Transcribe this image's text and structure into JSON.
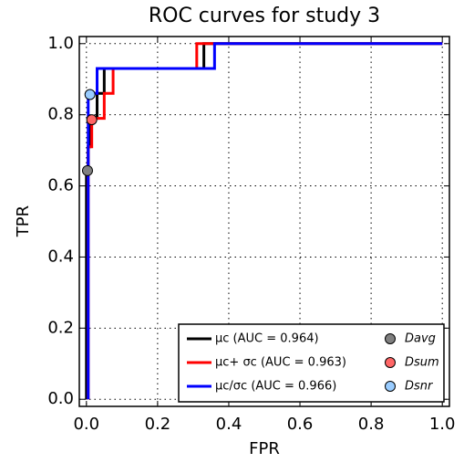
{
  "chart_data": {
    "type": "line",
    "title": "ROC curves for study 3",
    "xlabel": "FPR",
    "ylabel": "TPR",
    "xlim": [
      -0.02,
      1.02
    ],
    "ylim": [
      -0.02,
      1.02
    ],
    "xticks": [
      {
        "value": 0,
        "label": "0.0"
      },
      0.2,
      0.4,
      0.6,
      0.8,
      {
        "value": 1,
        "label": "1.0"
      }
    ],
    "yticks": [
      {
        "value": 0,
        "label": "0.0"
      },
      0.2,
      0.4,
      0.6,
      0.8,
      {
        "value": 1,
        "label": "1.0"
      }
    ],
    "grid": true,
    "legend": "lower right",
    "series": [
      {
        "name": "μc (AUC = 0.964)",
        "color": "#000000",
        "x": [
          0,
          0,
          0.005,
          0.005,
          0.01,
          0.01,
          0.03,
          0.03,
          0.05,
          0.05,
          0.33,
          0.33,
          1
        ],
        "values": [
          0,
          0.64,
          0.64,
          0.71,
          0.71,
          0.79,
          0.79,
          0.86,
          0.86,
          0.93,
          0.93,
          1,
          1
        ]
      },
      {
        "name": "μc+ σc (AUC = 0.963)",
        "color": "#ff0000",
        "x": [
          0.005,
          0.005,
          0.015,
          0.015,
          0.05,
          0.05,
          0.075,
          0.075,
          0.31,
          0.31,
          1
        ],
        "values": [
          0,
          0.71,
          0.71,
          0.79,
          0.79,
          0.86,
          0.86,
          0.93,
          0.93,
          1,
          1
        ]
      },
      {
        "name": "μc/σc (AUC = 0.966)",
        "color": "#0000ff",
        "x": [
          0.005,
          0.005,
          0.03,
          0.03,
          0.36,
          0.36,
          1
        ],
        "values": [
          0,
          0.86,
          0.86,
          0.93,
          0.93,
          1,
          1
        ]
      }
    ],
    "points": [
      {
        "name": "Davg",
        "color": "#808080",
        "x": 0.003,
        "y": 0.643
      },
      {
        "name": "Dsum",
        "color": "#ff6666",
        "x": 0.015,
        "y": 0.786
      },
      {
        "name": "Dsnr",
        "color": "#99ccff",
        "x": 0.01,
        "y": 0.857
      }
    ]
  }
}
